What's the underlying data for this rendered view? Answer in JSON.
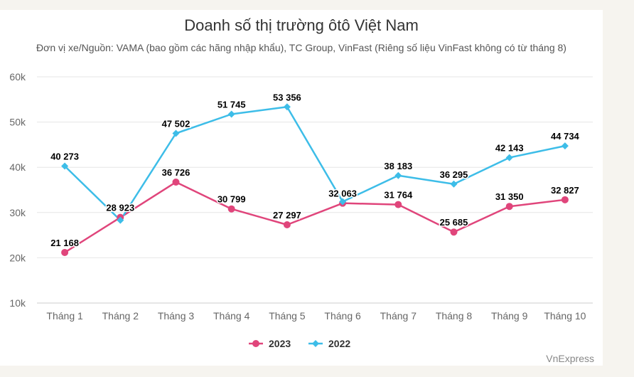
{
  "chart_data": {
    "type": "line",
    "title": "Doanh số thị trường ôtô Việt Nam",
    "subtitle": "Đơn vị xe/Nguồn: VAMA (bao gồm các hãng nhập khẩu), TC Group, VinFast (Riêng số liệu VinFast không có từ tháng 8)",
    "categories": [
      "Tháng 1",
      "Tháng 2",
      "Tháng 3",
      "Tháng 4",
      "Tháng 5",
      "Tháng 6",
      "Tháng 7",
      "Tháng 8",
      "Tháng 9",
      "Tháng 10"
    ],
    "y_ticks": [
      10000,
      20000,
      30000,
      40000,
      50000,
      60000
    ],
    "y_tick_labels": [
      "10k",
      "20k",
      "30k",
      "40k",
      "50k",
      "60k"
    ],
    "ylim": [
      10000,
      60000
    ],
    "grid": true,
    "legend_position": "bottom-center",
    "series": [
      {
        "name": "2023",
        "color": "#e0457b",
        "marker": "circle",
        "values": [
          21168,
          28923,
          36726,
          30799,
          27297,
          32063,
          31764,
          25685,
          31350,
          32827
        ],
        "labels": [
          "21 168",
          "28 923",
          "36 726",
          "30 799",
          "27 297",
          "32 063",
          "31 764",
          "25 685",
          "31 350",
          "32 827"
        ]
      },
      {
        "name": "2022",
        "color": "#3dbde8",
        "marker": "diamond",
        "values": [
          40273,
          28300,
          47502,
          51745,
          53356,
          32400,
          38183,
          36295,
          42143,
          44734
        ],
        "labels": [
          "40 273",
          null,
          "47 502",
          "51 745",
          "53 356",
          null,
          "38 183",
          "36 295",
          "42 143",
          "44 734"
        ]
      }
    ],
    "credit": "VnExpress"
  }
}
